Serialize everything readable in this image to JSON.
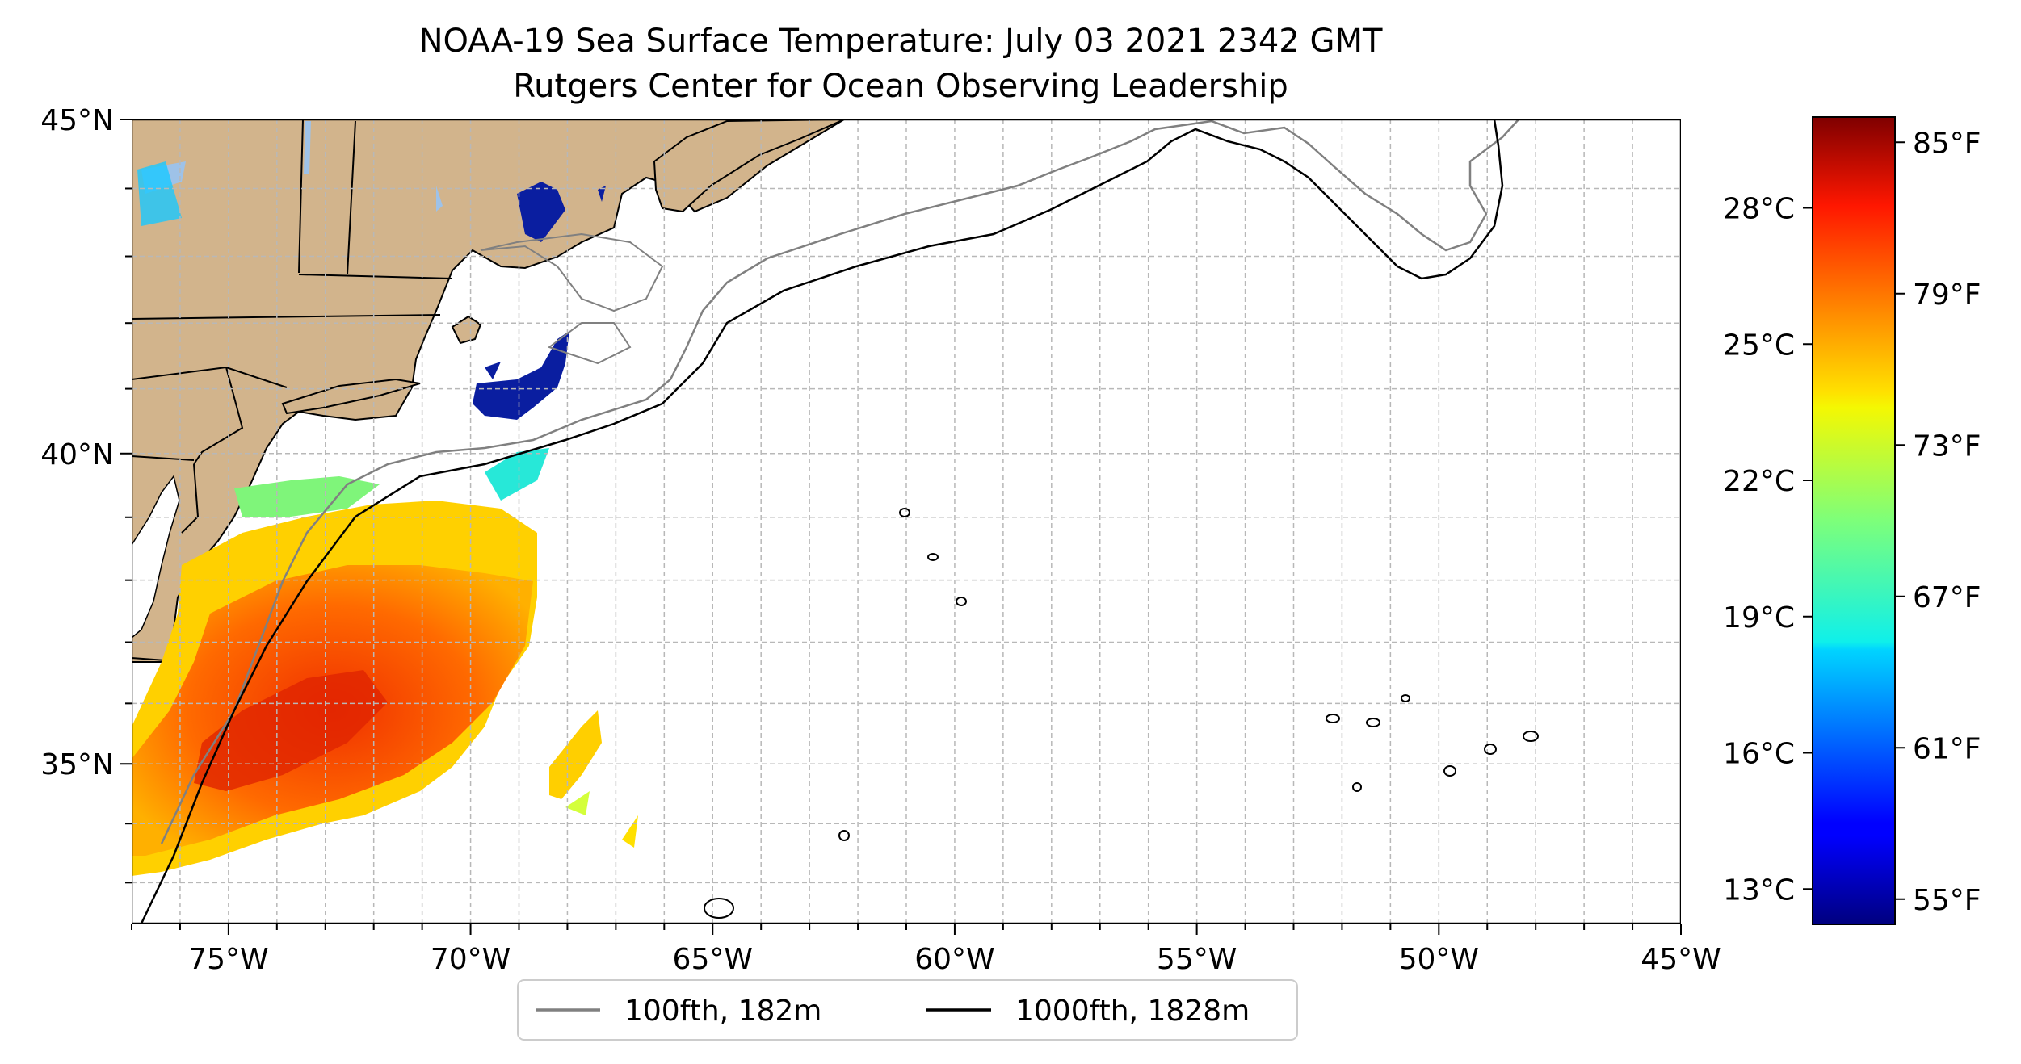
{
  "title": {
    "line1": "NOAA-19 Sea Surface Temperature: July 03 2021 2342 GMT",
    "line2": "Rutgers Center for Ocean Observing Leadership"
  },
  "map": {
    "lon_range": [
      -77,
      -45
    ],
    "lat_range": [
      32.3,
      45
    ],
    "lon_ticks": [
      {
        "value": -75,
        "label": "75°W"
      },
      {
        "value": -70,
        "label": "70°W"
      },
      {
        "value": -65,
        "label": "65°W"
      },
      {
        "value": -60,
        "label": "60°W"
      },
      {
        "value": -55,
        "label": "55°W"
      },
      {
        "value": -50,
        "label": "50°W"
      },
      {
        "value": -45,
        "label": "45°W"
      }
    ],
    "lat_ticks": [
      {
        "value": 45,
        "label": "45°N"
      },
      {
        "value": 40,
        "label": "40°N"
      },
      {
        "value": 35,
        "label": "35°N"
      }
    ],
    "gridlines": true,
    "land_color": "#d2b48c",
    "lake_color": "#9ec2e8"
  },
  "legend": {
    "items": [
      {
        "label": "100fth, 182m",
        "color": "#808080"
      },
      {
        "label": "1000fth, 1828m",
        "color": "#000000"
      }
    ],
    "placement": "bottom-center"
  },
  "colorbar": {
    "colormap": "jet",
    "celsius_ticks": [
      "28°C",
      "25°C",
      "22°C",
      "19°C",
      "16°C",
      "13°C"
    ],
    "fahrenheit_ticks": [
      "85°F",
      "79°F",
      "73°F",
      "67°F",
      "61°F",
      "55°F"
    ],
    "range_F": [
      54,
      86
    ]
  }
}
